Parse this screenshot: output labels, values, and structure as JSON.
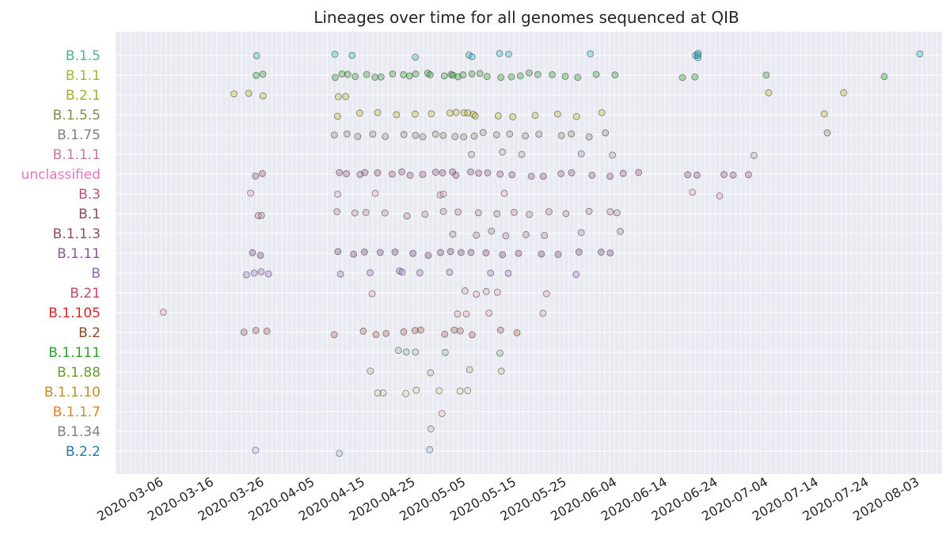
{
  "chart_data": {
    "type": "scatter",
    "title": "Lineages over time for all genomes sequenced at QIB",
    "xlabel": "",
    "ylabel": "",
    "x_axis": {
      "type": "date",
      "range": [
        "2020-02-26",
        "2020-08-08"
      ]
    },
    "grid": true,
    "x_tick_labels": [
      "2020-03-06",
      "2020-03-16",
      "2020-03-26",
      "2020-04-05",
      "2020-04-15",
      "2020-04-25",
      "2020-05-05",
      "2020-05-15",
      "2020-05-25",
      "2020-06-04",
      "2020-06-14",
      "2020-06-24",
      "2020-07-04",
      "2020-07-14",
      "2020-07-24",
      "2020-08-03"
    ],
    "categories": [
      "B.1.5",
      "B.1.1",
      "B.2.1",
      "B.1.5.5",
      "B.1.75",
      "B.1.1.1",
      "unclassified",
      "B.3",
      "B.1",
      "B.1.1.3",
      "B.1.11",
      "B",
      "B.21",
      "B.1.105",
      "B.2",
      "B.1.111",
      "B.1.88",
      "B.1.1.10",
      "B.1.1.7",
      "B.1.34",
      "B.2.2"
    ],
    "series": [
      {
        "lineage": "B.1.5",
        "color": "#4cb391",
        "fill": "#17becf",
        "dates": [
          "2020-03-25",
          "2020-04-10",
          "2020-04-13",
          "2020-04-26",
          "2020-05-06",
          "2020-05-07",
          "2020-05-12",
          "2020-05-14",
          "2020-05-30",
          "2020-06-20",
          "2020-06-21",
          "2020-06-20",
          "2020-06-21",
          "2020-08-03"
        ]
      },
      {
        "lineage": "B.1.1",
        "color": "#a6b33a",
        "fill": "#2ca02c",
        "dates": [
          "2020-03-25",
          "2020-03-26",
          "2020-04-10",
          "2020-04-11",
          "2020-04-12",
          "2020-04-14",
          "2020-04-16",
          "2020-04-18",
          "2020-04-19",
          "2020-04-21",
          "2020-04-23",
          "2020-04-24",
          "2020-04-26",
          "2020-04-28",
          "2020-04-29",
          "2020-05-01",
          "2020-05-02",
          "2020-05-03",
          "2020-05-04",
          "2020-05-05",
          "2020-05-07",
          "2020-05-08",
          "2020-05-10",
          "2020-05-12",
          "2020-05-14",
          "2020-05-16",
          "2020-05-18",
          "2020-05-20",
          "2020-05-23",
          "2020-05-25",
          "2020-05-28",
          "2020-06-01",
          "2020-06-04",
          "2020-06-18",
          "2020-06-20",
          "2020-07-04",
          "2020-07-28"
        ]
      },
      {
        "lineage": "B.2.1",
        "color": "#a8a83a",
        "fill": "#bcbd22",
        "dates": [
          "2020-03-20",
          "2020-03-24",
          "2020-03-26",
          "2020-04-10",
          "2020-04-12",
          "2020-07-05",
          "2020-07-20"
        ]
      },
      {
        "lineage": "B.1.5.5",
        "color": "#868b4f",
        "fill": "#bcbd22",
        "dates": [
          "2020-04-10",
          "2020-04-14",
          "2020-04-18",
          "2020-04-22",
          "2020-04-26",
          "2020-04-29",
          "2020-05-02",
          "2020-05-04",
          "2020-05-05",
          "2020-05-06",
          "2020-05-07",
          "2020-05-08",
          "2020-05-12",
          "2020-05-15",
          "2020-05-19",
          "2020-05-24",
          "2020-05-28",
          "2020-06-02",
          "2020-07-16"
        ]
      },
      {
        "lineage": "B.1.75",
        "color": "#7f7f7f",
        "fill": "#8c9478",
        "dates": [
          "2020-04-10",
          "2020-04-12",
          "2020-04-14",
          "2020-04-17",
          "2020-04-20",
          "2020-04-23",
          "2020-04-25",
          "2020-04-27",
          "2020-04-29",
          "2020-05-01",
          "2020-05-03",
          "2020-05-05",
          "2020-05-07",
          "2020-05-09",
          "2020-05-11",
          "2020-05-14",
          "2020-05-17",
          "2020-05-20",
          "2020-05-24",
          "2020-05-27",
          "2020-05-30",
          "2020-06-02",
          "2020-07-16"
        ]
      },
      {
        "lineage": "B.1.1.1",
        "color": "#c27ba0",
        "fill": "#b0a0b0",
        "dates": [
          "2020-05-07",
          "2020-05-13",
          "2020-05-16",
          "2020-05-29",
          "2020-06-04",
          "2020-07-02"
        ]
      },
      {
        "lineage": "unclassified",
        "color": "#e377c2",
        "fill": "#9b5a8c",
        "dates": [
          "2020-03-25",
          "2020-03-26",
          "2020-04-10",
          "2020-04-12",
          "2020-04-14",
          "2020-04-16",
          "2020-04-18",
          "2020-04-21",
          "2020-04-23",
          "2020-04-25",
          "2020-04-27",
          "2020-04-29",
          "2020-05-01",
          "2020-05-03",
          "2020-05-04",
          "2020-05-06",
          "2020-05-08",
          "2020-05-10",
          "2020-05-12",
          "2020-05-15",
          "2020-05-18",
          "2020-05-21",
          "2020-05-24",
          "2020-05-27",
          "2020-05-31",
          "2020-06-03",
          "2020-06-06",
          "2020-06-09",
          "2020-06-18",
          "2020-06-20",
          "2020-06-26",
          "2020-06-28",
          "2020-06-30"
        ]
      },
      {
        "lineage": "B.3",
        "color": "#c0507a",
        "fill": "#e5a0bf",
        "dates": [
          "2020-03-24",
          "2020-04-10",
          "2020-04-18",
          "2020-04-30",
          "2020-05-01",
          "2020-05-13",
          "2020-06-20",
          "2020-06-25"
        ]
      },
      {
        "lineage": "B.1",
        "color": "#8c4a52",
        "fill": "#c08a98",
        "dates": [
          "2020-03-25",
          "2020-03-26",
          "2020-04-10",
          "2020-04-13",
          "2020-04-16",
          "2020-04-20",
          "2020-04-24",
          "2020-04-27",
          "2020-05-01",
          "2020-05-04",
          "2020-05-08",
          "2020-05-12",
          "2020-05-15",
          "2020-05-18",
          "2020-05-22",
          "2020-05-26",
          "2020-05-30",
          "2020-06-03",
          "2020-06-05"
        ]
      },
      {
        "lineage": "B.1.1.3",
        "color": "#8c4a6c",
        "fill": "#b58aa0",
        "dates": [
          "2020-05-03",
          "2020-05-07",
          "2020-05-11",
          "2020-05-13",
          "2020-05-17",
          "2020-05-21",
          "2020-05-29",
          "2020-06-05"
        ]
      },
      {
        "lineage": "B.1.11",
        "color": "#8e5a96",
        "fill": "#7a4a78",
        "dates": [
          "2020-03-24",
          "2020-03-26",
          "2020-04-10",
          "2020-04-13",
          "2020-04-16",
          "2020-04-19",
          "2020-04-22",
          "2020-04-25",
          "2020-04-28",
          "2020-05-01",
          "2020-05-03",
          "2020-05-05",
          "2020-05-07",
          "2020-05-10",
          "2020-05-13",
          "2020-05-16",
          "2020-05-20",
          "2020-05-24",
          "2020-05-28",
          "2020-06-01",
          "2020-06-03"
        ]
      },
      {
        "lineage": "B",
        "color": "#9467bd",
        "fill": "#9e7cc8",
        "dates": [
          "2020-03-23",
          "2020-03-25",
          "2020-03-26",
          "2020-03-27",
          "2020-04-11",
          "2020-04-17",
          "2020-04-22",
          "2020-04-23",
          "2020-04-27",
          "2020-05-02",
          "2020-05-11",
          "2020-05-14",
          "2020-05-28"
        ]
      },
      {
        "lineage": "B.21",
        "color": "#c7456a",
        "fill": "#e8a0b4",
        "dates": [
          "2020-04-17",
          "2020-05-05",
          "2020-05-07",
          "2020-05-09",
          "2020-05-12",
          "2020-05-21"
        ]
      },
      {
        "lineage": "B.1.105",
        "color": "#d62728",
        "fill": "#f0a0a0",
        "dates": [
          "2020-03-06",
          "2020-05-04",
          "2020-05-06",
          "2020-05-10",
          "2020-05-21"
        ]
      },
      {
        "lineage": "B.2",
        "color": "#8c4a1f",
        "fill": "#b56a5a",
        "dates": [
          "2020-03-23",
          "2020-03-25",
          "2020-03-27",
          "2020-04-10",
          "2020-04-15",
          "2020-04-18",
          "2020-04-20",
          "2020-04-23",
          "2020-04-25",
          "2020-04-27",
          "2020-05-01",
          "2020-05-03",
          "2020-05-05",
          "2020-05-07",
          "2020-05-13",
          "2020-05-16"
        ]
      },
      {
        "lineage": "B.1.111",
        "color": "#2ca02c",
        "fill": "#8ec08e",
        "dates": [
          "2020-04-22",
          "2020-04-24",
          "2020-04-26",
          "2020-05-02",
          "2020-05-12"
        ]
      },
      {
        "lineage": "B.1.88",
        "color": "#6a9a2a",
        "fill": "#b0c890",
        "dates": [
          "2020-04-16",
          "2020-04-28",
          "2020-05-06",
          "2020-05-13"
        ]
      },
      {
        "lineage": "B.1.1.10",
        "color": "#c09020",
        "fill": "#e8d0a0",
        "dates": [
          "2020-04-18",
          "2020-04-19",
          "2020-04-23",
          "2020-04-26",
          "2020-04-30",
          "2020-05-04",
          "2020-05-06"
        ]
      },
      {
        "lineage": "B.1.1.7",
        "color": "#e0842a",
        "fill": "#f0c0a0",
        "dates": [
          "2020-05-01"
        ]
      },
      {
        "lineage": "B.1.34",
        "color": "#7f7f7f",
        "fill": "#c0c0c0",
        "dates": [
          "2020-04-28"
        ]
      },
      {
        "lineage": "B.2.2",
        "color": "#1f77b4",
        "fill": "#a6c6e6",
        "dates": [
          "2020-03-25",
          "2020-04-10",
          "2020-04-28"
        ]
      }
    ]
  }
}
